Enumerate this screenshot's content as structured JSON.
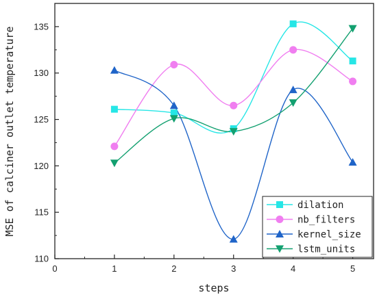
{
  "chart_data": {
    "type": "line",
    "title": "",
    "xlabel": "steps",
    "ylabel": "MSE of calciner outlet temperature",
    "xlim": [
      0,
      5.35
    ],
    "ylim": [
      110,
      137.5
    ],
    "x_ticks": [
      0,
      1,
      2,
      3,
      4,
      5
    ],
    "y_ticks": [
      110,
      115,
      120,
      125,
      130,
      135
    ],
    "grid": false,
    "smooth": true,
    "legend_position": "bottom-right",
    "series": [
      {
        "name": "dilation",
        "color": "#26e6e6",
        "marker": "square",
        "x": [
          1,
          2,
          3,
          4,
          5
        ],
        "values": [
          126.1,
          125.7,
          124.0,
          135.3,
          131.3
        ]
      },
      {
        "name": "nb_filters",
        "color": "#f07ef0",
        "marker": "circle",
        "x": [
          1,
          2,
          3,
          4,
          5
        ],
        "values": [
          122.1,
          130.9,
          126.5,
          132.5,
          129.1
        ]
      },
      {
        "name": "kernel_size",
        "color": "#1f64c8",
        "marker": "triangle-up",
        "x": [
          1,
          2,
          3,
          4,
          5
        ],
        "values": [
          130.3,
          126.5,
          112.1,
          128.2,
          120.4
        ]
      },
      {
        "name": "lstm_units",
        "color": "#13a070",
        "marker": "triangle-down",
        "x": [
          1,
          2,
          3,
          4,
          5
        ],
        "values": [
          120.3,
          125.1,
          123.7,
          126.8,
          134.8
        ]
      }
    ]
  }
}
